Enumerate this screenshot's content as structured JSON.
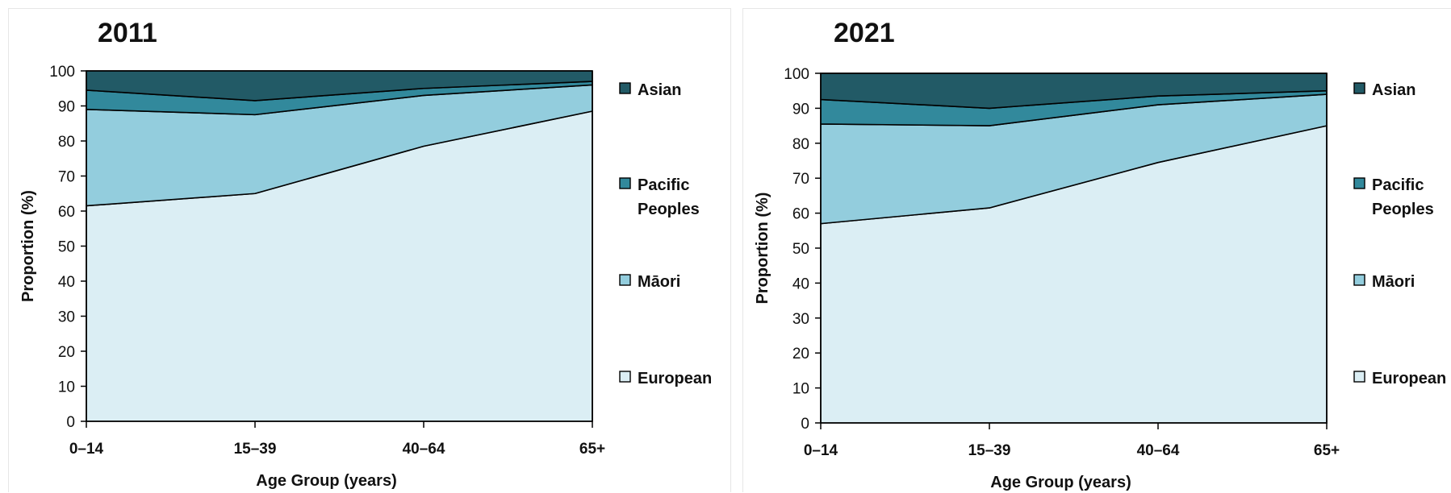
{
  "colors": {
    "Asian": "#225a66",
    "Pacific Peoples": "#32899c",
    "Māori": "#93cddd",
    "European": "#dbeef4"
  },
  "chart_data": [
    {
      "type": "area",
      "stacked": true,
      "title": "2011",
      "xlabel": "Age Group (years)",
      "ylabel": "Proportion (%)",
      "categories": [
        "0–14",
        "15–39",
        "40–64",
        "65+"
      ],
      "ylim": [
        0,
        100
      ],
      "yticks": [
        0,
        10,
        20,
        30,
        40,
        50,
        60,
        70,
        80,
        90,
        100
      ],
      "legend_position": "right",
      "series": [
        {
          "name": "European",
          "values": [
            61.5,
            65,
            78.5,
            88.5
          ]
        },
        {
          "name": "Māori",
          "values": [
            27.5,
            22.5,
            14.5,
            7.5
          ]
        },
        {
          "name": "Pacific Peoples",
          "values": [
            5.5,
            4,
            2,
            1
          ]
        },
        {
          "name": "Asian",
          "values": [
            5.5,
            8.5,
            5,
            3
          ]
        }
      ],
      "legend_order": [
        "Asian",
        "Pacific Peoples",
        "Māori",
        "European"
      ],
      "legend_labels": {
        "Asian": [
          "Asian"
        ],
        "Pacific Peoples": [
          "Pacific",
          "Peoples"
        ],
        "Māori": [
          "Māori"
        ],
        "European": [
          "European"
        ]
      }
    },
    {
      "type": "area",
      "stacked": true,
      "title": "2021",
      "xlabel": "Age Group (years)",
      "ylabel": "Proportion (%)",
      "categories": [
        "0–14",
        "15–39",
        "40–64",
        "65+"
      ],
      "ylim": [
        0,
        100
      ],
      "yticks": [
        0,
        10,
        20,
        30,
        40,
        50,
        60,
        70,
        80,
        90,
        100
      ],
      "legend_position": "right",
      "series": [
        {
          "name": "European",
          "values": [
            57,
            61.5,
            74.5,
            85
          ]
        },
        {
          "name": "Māori",
          "values": [
            28.5,
            23.5,
            16.5,
            9
          ]
        },
        {
          "name": "Pacific Peoples",
          "values": [
            7,
            5,
            2.5,
            1
          ]
        },
        {
          "name": "Asian",
          "values": [
            7.5,
            10,
            6.5,
            5
          ]
        }
      ],
      "legend_order": [
        "Asian",
        "Pacific Peoples",
        "Māori",
        "European"
      ],
      "legend_labels": {
        "Asian": [
          "Asian"
        ],
        "Pacific Peoples": [
          "Pacific",
          "Peoples"
        ],
        "Māori": [
          "Māori"
        ],
        "European": [
          "European"
        ]
      }
    }
  ]
}
